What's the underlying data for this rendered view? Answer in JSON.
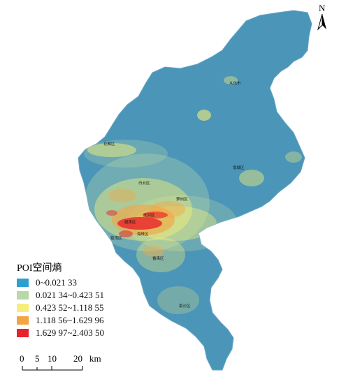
{
  "legend": {
    "title": "POI空间熵",
    "classes": [
      {
        "label": "0~0.021 33",
        "color": "#2f9fd1"
      },
      {
        "label": "0.021 34~0.423 51",
        "color": "#b7d8a8"
      },
      {
        "label": "0.423 52~1.118 55",
        "color": "#f5ef7a"
      },
      {
        "label": "1.118 56~1.629 96",
        "color": "#f4a443"
      },
      {
        "label": "1.629 97~2.403 50",
        "color": "#e8232a"
      }
    ]
  },
  "districts": [
    "从化市",
    "花都区",
    "增城区",
    "白云区",
    "萝岗区",
    "天河区",
    "越秀区",
    "荔湾区",
    "海珠区",
    "番禺区",
    "南沙区"
  ],
  "north_arrow": {
    "letter": "N",
    "icon": "north-arrow-icon"
  },
  "scale_bar": {
    "ticks": [
      "0",
      "5",
      "10",
      "20"
    ],
    "unit": "km"
  },
  "colors": {
    "base": "#4a95b8",
    "outline": "#6aa6c4"
  }
}
